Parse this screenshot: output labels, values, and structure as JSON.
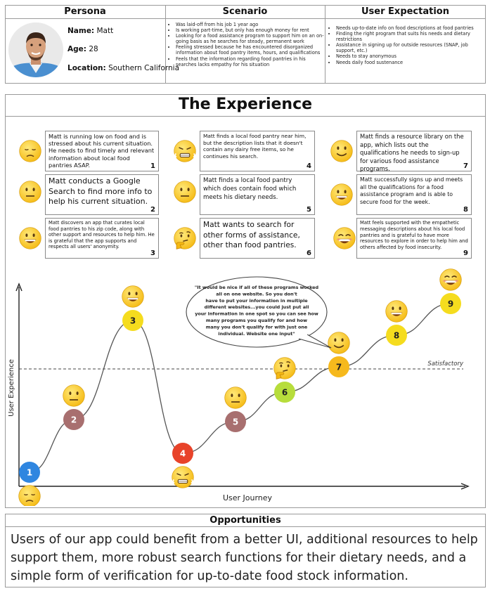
{
  "table": {
    "headers": [
      "Persona",
      "Scenario",
      "User Expectation"
    ],
    "persona": {
      "name_label": "Name:",
      "name": "Matt",
      "age_label": "Age:",
      "age": "28",
      "location_label": "Location:",
      "location": "Southern California"
    },
    "scenario": [
      "Was laid-off from his job 1 year ago",
      "Is working part-time, but only has enough money for rent",
      "Looking for a food assistance program to support him on an on-going basis as he searches for steady, permanent work",
      "Feeling stressed because he has encountered disorganized information about food pantry items, hours, and qualifications",
      "Feels that the information regarding food pantries in his searches lacks empathy for his situation"
    ],
    "expectation": [
      "Needs up-to-date info on food descriptions at food pantries",
      "Finding the right program that suits his needs and dietary restrictions",
      "Assistance in signing up for outside resources (SNAP, job support, etc.)",
      "Needs to stay anonymous",
      "Needs daily food sustenance"
    ]
  },
  "experience": {
    "title": "The Experience",
    "cards": [
      {
        "num": "1",
        "text": "Matt is running low on food and is stressed about his current situation. He needs to find timely and relevant information about local food pantries ASAP."
      },
      {
        "num": "2",
        "text": "Matt conducts a Google Search to find more info to help his current situation."
      },
      {
        "num": "3",
        "text": "Matt discovers an app that curates local food pantries to his zip code, along with other support and resources to help him. He is grateful that the app supports and respects all users' anonymity."
      },
      {
        "num": "4",
        "text": "Matt finds a local food pantry near him, but the description lists that it doesn't contain any dairy free items, so he continues his search."
      },
      {
        "num": "5",
        "text": "Matt finds a local food pantry which does contain food which meets his dietary needs."
      },
      {
        "num": "6",
        "text": "Matt wants to search for other forms of assistance, other than food pantries."
      },
      {
        "num": "7",
        "text": "Matt finds a resource library on the app, which lists out the qualifications he needs to sign-up for various food assistance programs."
      },
      {
        "num": "8",
        "text": "Matt successfully signs up and meets all the qualifications for a food assistance program and is able to secure food for the week."
      },
      {
        "num": "9",
        "text": "Matt feels supported with the empathetic messaging descriptions about his local food pantries and is grateful to have more resources to explore in order to help him and others affected by food insecurity."
      }
    ],
    "emotions": [
      "sad",
      "neutral",
      "grin",
      "frustrated",
      "neutral",
      "thinking",
      "smile",
      "grin",
      "beaming"
    ],
    "quote": "\"It would be nice if all of these programs worked all on one website. So you don't have to put your information in multiple different websites...you could just put all your information in one spot so you can see how many programs you qualify for and how many you don't qualify for with just one individual. Website one input\"",
    "quote_lines": [
      "\"It would be nice if all of these programs worked",
      "all on one website. So you don't",
      "have to put your information in multiple",
      "different websites...you could just put all",
      "your information in one spot so you can see how",
      "many programs you qualify for and how",
      "many you don't qualify for with just one",
      "individual. Website one input\""
    ]
  },
  "chart_data": {
    "type": "line",
    "xlabel": "User Journey",
    "ylabel": "User Experience",
    "threshold_label": "Satisfactory",
    "points": [
      {
        "label": "1",
        "value": 1,
        "color": "#2f86e0"
      },
      {
        "label": "2",
        "value": 3.5,
        "color": "#a86f6f"
      },
      {
        "label": "3",
        "value": 8.2,
        "color": "#f5dc1e"
      },
      {
        "label": "4",
        "value": 1.9,
        "color": "#e8432a"
      },
      {
        "label": "5",
        "value": 3.4,
        "color": "#a86f6f"
      },
      {
        "label": "6",
        "value": 4.8,
        "color": "#b7dd3c"
      },
      {
        "label": "7",
        "value": 6.0,
        "color": "#f6b91d"
      },
      {
        "label": "8",
        "value": 7.5,
        "color": "#f5dc1e"
      },
      {
        "label": "9",
        "value": 9.0,
        "color": "#f5dc1e"
      }
    ],
    "threshold": 5.9
  },
  "opportunities": {
    "title": "Opportunities",
    "text": "Users of our app could benefit from a better UI, additional resources to help support them, more robust search functions for their dietary needs, and a simple form of verification for up-to-date food stock information."
  }
}
